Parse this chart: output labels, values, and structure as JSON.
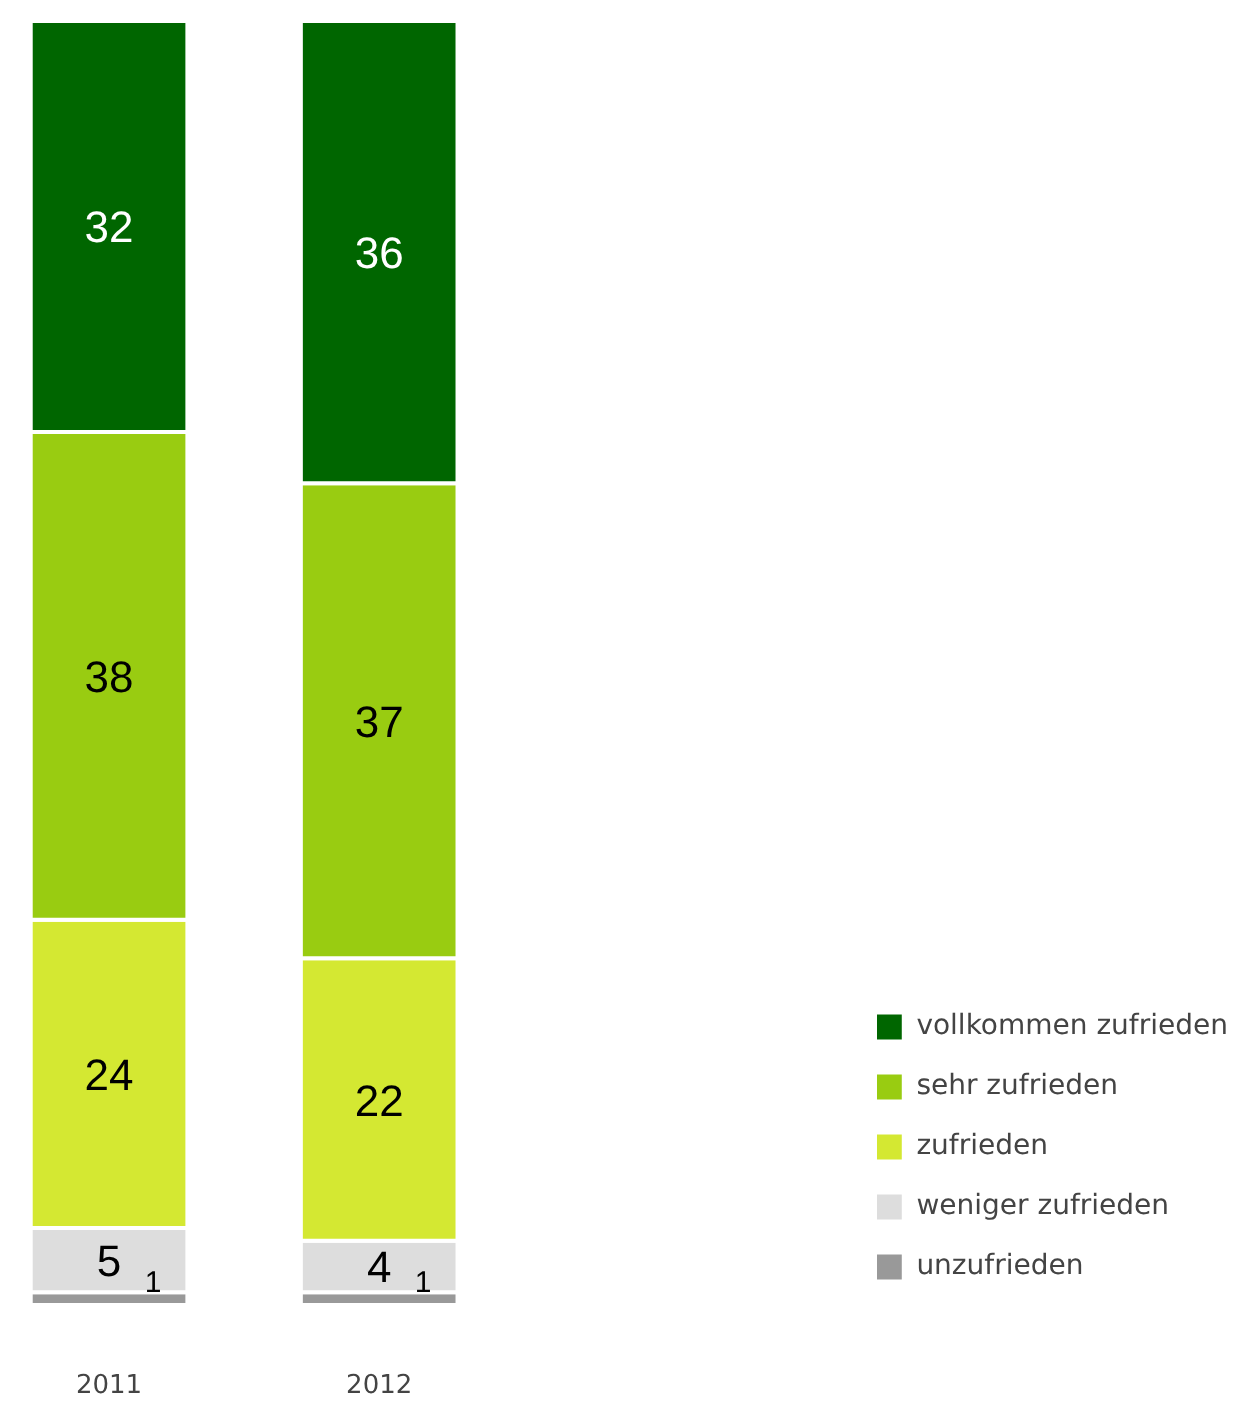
{
  "chart_data": {
    "type": "bar",
    "stacked": true,
    "data_labels": true,
    "legend": "bottom right",
    "grid": false,
    "categories": [
      "2011",
      "2012"
    ],
    "ylim": [
      0,
      100
    ],
    "tick_labels": "x",
    "series": [
      {
        "name": "unzufrieden",
        "color": "#999999",
        "values": [
          1,
          1
        ]
      },
      {
        "name": "weniger zufrieden",
        "color": "#dddddd",
        "values": [
          5,
          4
        ]
      },
      {
        "name": "zufrieden",
        "color": "#d4e832",
        "values": [
          24,
          22
        ]
      },
      {
        "name": "sehr zufrieden",
        "color": "#99cc11",
        "values": [
          38,
          37
        ]
      },
      {
        "name": "vollkommen zufrieden",
        "color": "#006600",
        "values": [
          32,
          36
        ]
      }
    ]
  }
}
